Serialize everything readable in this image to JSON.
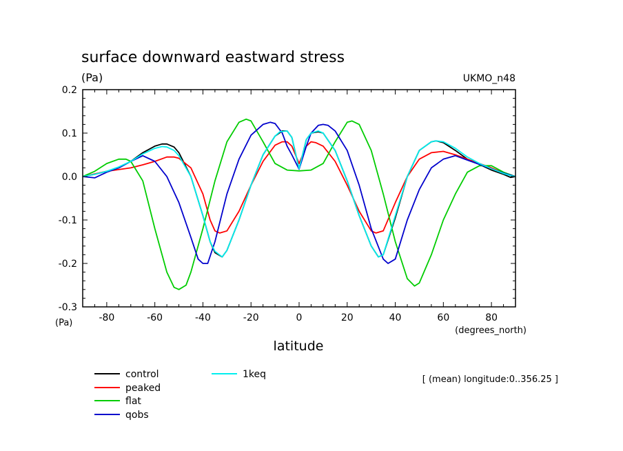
{
  "chart_data": {
    "type": "line",
    "title": "surface downward eastward stress",
    "units_label": "(Pa)",
    "model_label": "UKMO_n48",
    "y_axis_units_label": "(Pa)",
    "x_units_label": "(degrees_north)",
    "xlabel": "latitude",
    "mean_note": "[ (mean) longitude:0..356.25 ]",
    "xlim": [
      -90,
      90
    ],
    "ylim": [
      -0.3,
      0.2
    ],
    "xticks": [
      -80,
      -60,
      -40,
      -20,
      0,
      20,
      40,
      60,
      80
    ],
    "yticks": [
      0.2,
      0.1,
      0.0,
      -0.1,
      -0.2,
      -0.3
    ],
    "ytick_labels": [
      "0.2",
      "0.1",
      "0.0",
      "-0.1",
      "-0.2",
      "-0.3"
    ],
    "grid": false,
    "legend_position": "bottom-left",
    "series": [
      {
        "name": "control",
        "color": "#000000",
        "x": [
          -90,
          -85,
          -80,
          -75,
          -70,
          -65,
          -60,
          -57,
          -55,
          -52,
          -50,
          -45,
          -40,
          -37,
          -35,
          -32,
          -30,
          -25,
          -20,
          -15,
          -10,
          -7,
          -5,
          -3,
          0,
          3,
          5,
          8,
          10,
          15,
          20,
          25,
          30,
          33,
          35,
          40,
          45,
          50,
          55,
          57,
          60,
          65,
          70,
          75,
          80,
          85,
          88,
          90
        ],
        "y": [
          0.0,
          0.005,
          0.012,
          0.02,
          0.035,
          0.055,
          0.07,
          0.075,
          0.075,
          0.068,
          0.055,
          0.0,
          -0.09,
          -0.15,
          -0.175,
          -0.185,
          -0.17,
          -0.1,
          -0.02,
          0.05,
          0.093,
          0.105,
          0.105,
          0.09,
          0.018,
          0.085,
          0.1,
          0.103,
          0.1,
          0.06,
          -0.01,
          -0.09,
          -0.16,
          -0.185,
          -0.18,
          -0.095,
          0.0,
          0.06,
          0.08,
          0.082,
          0.078,
          0.06,
          0.04,
          0.028,
          0.015,
          0.005,
          -0.002,
          0.0
        ]
      },
      {
        "name": "peaked",
        "color": "#ff0000",
        "x": [
          -90,
          -80,
          -70,
          -65,
          -60,
          -55,
          -52,
          -50,
          -45,
          -40,
          -37,
          -35,
          -33,
          -30,
          -25,
          -20,
          -15,
          -10,
          -7,
          -5,
          -3,
          0,
          3,
          5,
          7,
          10,
          15,
          20,
          25,
          30,
          32,
          35,
          40,
          45,
          50,
          55,
          60,
          65,
          70,
          75,
          80,
          85,
          90
        ],
        "y": [
          0.0,
          0.012,
          0.02,
          0.027,
          0.035,
          0.045,
          0.045,
          0.042,
          0.02,
          -0.04,
          -0.1,
          -0.125,
          -0.13,
          -0.125,
          -0.08,
          -0.02,
          0.035,
          0.072,
          0.08,
          0.08,
          0.07,
          0.03,
          0.07,
          0.08,
          0.078,
          0.07,
          0.035,
          -0.02,
          -0.08,
          -0.125,
          -0.13,
          -0.125,
          -0.06,
          0.0,
          0.04,
          0.055,
          0.058,
          0.05,
          0.04,
          0.03,
          0.02,
          0.008,
          0.0
        ]
      },
      {
        "name": "flat",
        "color": "#00cc00",
        "x": [
          -90,
          -85,
          -80,
          -75,
          -72,
          -70,
          -65,
          -60,
          -55,
          -52,
          -50,
          -47,
          -45,
          -40,
          -35,
          -30,
          -25,
          -22,
          -20,
          -15,
          -10,
          -5,
          0,
          5,
          10,
          15,
          20,
          22,
          25,
          30,
          35,
          40,
          45,
          48,
          50,
          55,
          60,
          65,
          70,
          75,
          80,
          85,
          90
        ],
        "y": [
          0.0,
          0.012,
          0.03,
          0.04,
          0.04,
          0.035,
          -0.01,
          -0.12,
          -0.22,
          -0.255,
          -0.26,
          -0.25,
          -0.22,
          -0.12,
          -0.01,
          0.08,
          0.125,
          0.132,
          0.128,
          0.08,
          0.03,
          0.015,
          0.013,
          0.015,
          0.03,
          0.08,
          0.125,
          0.128,
          0.12,
          0.06,
          -0.04,
          -0.15,
          -0.235,
          -0.252,
          -0.245,
          -0.18,
          -0.1,
          -0.04,
          0.01,
          0.025,
          0.025,
          0.01,
          0.0
        ]
      },
      {
        "name": "qobs",
        "color": "#0000cc",
        "x": [
          -90,
          -85,
          -80,
          -75,
          -70,
          -65,
          -60,
          -55,
          -50,
          -45,
          -42,
          -40,
          -38,
          -35,
          -30,
          -25,
          -20,
          -15,
          -12,
          -10,
          -7,
          -5,
          -3,
          0,
          3,
          5,
          8,
          10,
          12,
          15,
          20,
          25,
          30,
          35,
          37,
          40,
          45,
          50,
          55,
          60,
          65,
          70,
          75,
          80,
          85,
          90
        ],
        "y": [
          0.0,
          -0.003,
          0.01,
          0.02,
          0.035,
          0.048,
          0.035,
          0.0,
          -0.06,
          -0.14,
          -0.19,
          -0.2,
          -0.2,
          -0.15,
          -0.04,
          0.04,
          0.095,
          0.12,
          0.125,
          0.122,
          0.1,
          0.07,
          0.05,
          0.017,
          0.07,
          0.1,
          0.118,
          0.12,
          0.118,
          0.105,
          0.06,
          -0.02,
          -0.12,
          -0.19,
          -0.2,
          -0.19,
          -0.1,
          -0.03,
          0.02,
          0.04,
          0.048,
          0.038,
          0.028,
          0.018,
          0.008,
          0.0
        ]
      },
      {
        "name": "1keq",
        "color": "#00eeee",
        "x": [
          -90,
          -85,
          -80,
          -75,
          -70,
          -65,
          -60,
          -57,
          -55,
          -52,
          -50,
          -45,
          -40,
          -37,
          -35,
          -32,
          -30,
          -25,
          -20,
          -15,
          -10,
          -8,
          -5,
          -3,
          0,
          3,
          5,
          8,
          10,
          15,
          20,
          25,
          30,
          33,
          35,
          40,
          45,
          50,
          55,
          57,
          60,
          65,
          70,
          75,
          80,
          85,
          88,
          90
        ],
        "y": [
          0.0,
          0.005,
          0.012,
          0.022,
          0.035,
          0.052,
          0.065,
          0.069,
          0.068,
          0.06,
          0.048,
          0.0,
          -0.09,
          -0.15,
          -0.172,
          -0.185,
          -0.17,
          -0.1,
          -0.02,
          0.05,
          0.093,
          0.103,
          0.105,
          0.09,
          0.018,
          0.085,
          0.1,
          0.105,
          0.1,
          0.06,
          -0.01,
          -0.09,
          -0.16,
          -0.185,
          -0.18,
          -0.09,
          0.0,
          0.06,
          0.08,
          0.082,
          0.08,
          0.065,
          0.045,
          0.03,
          0.018,
          0.007,
          0.002,
          0.0
        ]
      }
    ]
  }
}
